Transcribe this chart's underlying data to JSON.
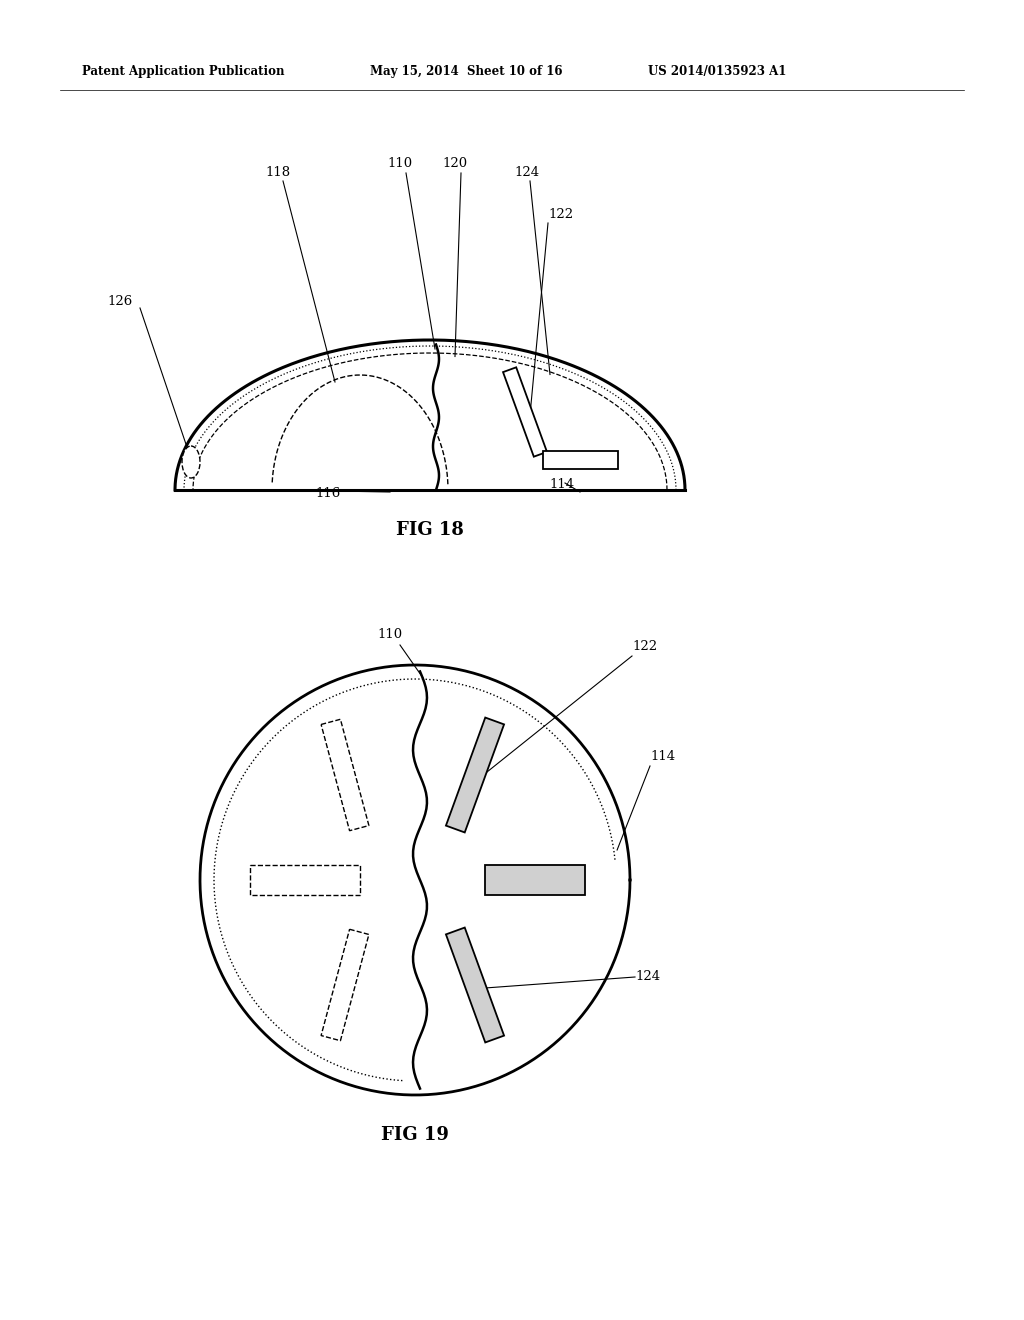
{
  "background_color": "#ffffff",
  "header_text": "Patent Application Publication",
  "header_date": "May 15, 2014  Sheet 10 of 16",
  "header_patent": "US 2014/0135923 A1",
  "fig18_caption": "FIG 18",
  "fig19_caption": "FIG 19"
}
